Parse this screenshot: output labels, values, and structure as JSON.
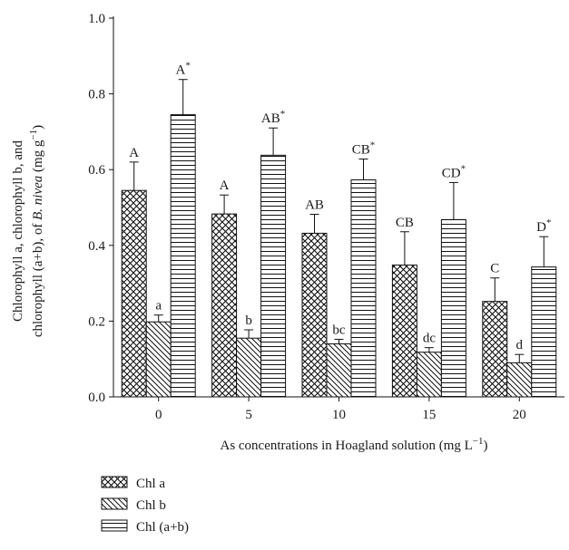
{
  "chart_data": {
    "type": "bar",
    "ylabel_line1": "Chlorophyll a, chlorophyll b, and",
    "ylabel_line2_prefix": "chlorophyll (a+b), of ",
    "ylabel_species": "B. nivea",
    "ylabel_unit": " (mg g",
    "ylabel_unit_exp": "−1",
    "ylabel_close": ")",
    "xlabel": "As concentrations in Hoagland solution (mg L",
    "xlabel_exp": "−1",
    "xlabel_close": ")",
    "ylim": [
      0,
      1.0
    ],
    "yticks": [
      "0.0",
      "0.2",
      "0.4",
      "0.6",
      "0.8",
      "1.0"
    ],
    "categories": [
      "0",
      "5",
      "10",
      "15",
      "20"
    ],
    "series": [
      {
        "name": "Chl a",
        "pattern": "crosshatch",
        "values": [
          0.545,
          0.483,
          0.432,
          0.348,
          0.252
        ],
        "errors": [
          0.075,
          0.05,
          0.05,
          0.088,
          0.062
        ],
        "letters": [
          "A",
          "A",
          "AB",
          "CB",
          "C"
        ]
      },
      {
        "name": "Chl b",
        "pattern": "diagonal",
        "values": [
          0.198,
          0.155,
          0.14,
          0.118,
          0.09
        ],
        "errors": [
          0.018,
          0.022,
          0.012,
          0.012,
          0.022
        ],
        "letters": [
          "a",
          "b",
          "bc",
          "dc",
          "d"
        ]
      },
      {
        "name": "Chl (a+b)",
        "pattern": "horizontal",
        "values": [
          0.745,
          0.638,
          0.573,
          0.468,
          0.343
        ],
        "errors": [
          0.093,
          0.072,
          0.055,
          0.098,
          0.08
        ],
        "letters": [
          "A",
          "AB",
          "CB",
          "CD",
          "D"
        ],
        "letter_marks": "*"
      }
    ],
    "legend_position": "bottom-left"
  }
}
